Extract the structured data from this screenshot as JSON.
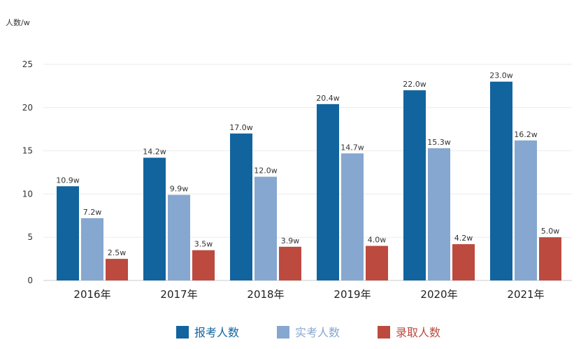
{
  "chart_data": {
    "type": "bar",
    "ylabel": "人数/w",
    "ylim": [
      0,
      25
    ],
    "yticks": [
      0,
      5,
      10,
      15,
      20,
      25
    ],
    "grid": true,
    "legend_position": "bottom",
    "categories": [
      "2016年",
      "2017年",
      "2018年",
      "2019年",
      "2020年",
      "2021年"
    ],
    "series": [
      {
        "name": "报考人数",
        "color": "#12649e",
        "values": [
          10.9,
          14.2,
          17.0,
          20.4,
          22.0,
          23.0
        ],
        "labels": [
          "10.9w",
          "14.2w",
          "17.0w",
          "20.4w",
          "22.0w",
          "23.0w"
        ]
      },
      {
        "name": "实考人数",
        "color": "#86a7cf",
        "values": [
          7.2,
          9.9,
          12.0,
          14.7,
          15.3,
          16.2
        ],
        "labels": [
          "7.2w",
          "9.9w",
          "12.0w",
          "14.7w",
          "15.3w",
          "16.2w"
        ]
      },
      {
        "name": "录取人数",
        "color": "#bc4a3f",
        "values": [
          2.5,
          3.5,
          3.9,
          4.0,
          4.2,
          5.0
        ],
        "labels": [
          "2.5w",
          "3.5w",
          "3.9w",
          "4.0w",
          "4.2w",
          "5.0w"
        ]
      }
    ]
  }
}
